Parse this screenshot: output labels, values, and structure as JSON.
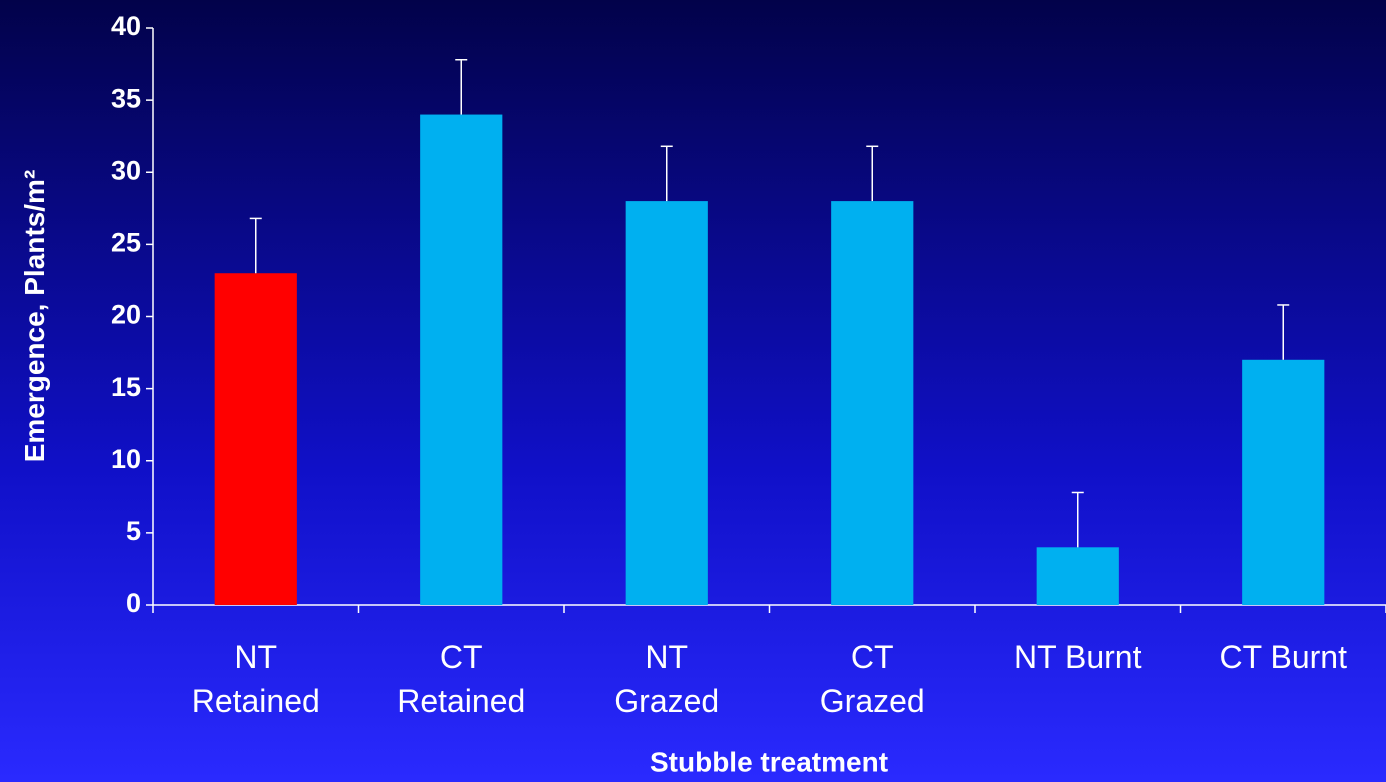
{
  "chart_data": {
    "type": "bar",
    "x_label": "Stubble treatment",
    "y_label": "Emergence, Plants/m²",
    "categories": [
      "NT\nRetained",
      "CT\nRetained",
      "NT\nGrazed",
      "CT\nGrazed",
      "NT Burnt",
      "CT Burnt"
    ],
    "values": [
      23,
      34,
      28,
      28,
      4,
      17
    ],
    "errors": [
      3.8,
      3.8,
      3.8,
      3.8,
      3.8,
      3.8
    ],
    "colors": [
      "#ff0000",
      "#00b0f0",
      "#00b0f0",
      "#00b0f0",
      "#00b0f0",
      "#00b0f0"
    ],
    "ylim": [
      0,
      40
    ],
    "yticks": [
      0,
      5,
      10,
      15,
      20,
      25,
      30,
      35,
      40
    ]
  }
}
